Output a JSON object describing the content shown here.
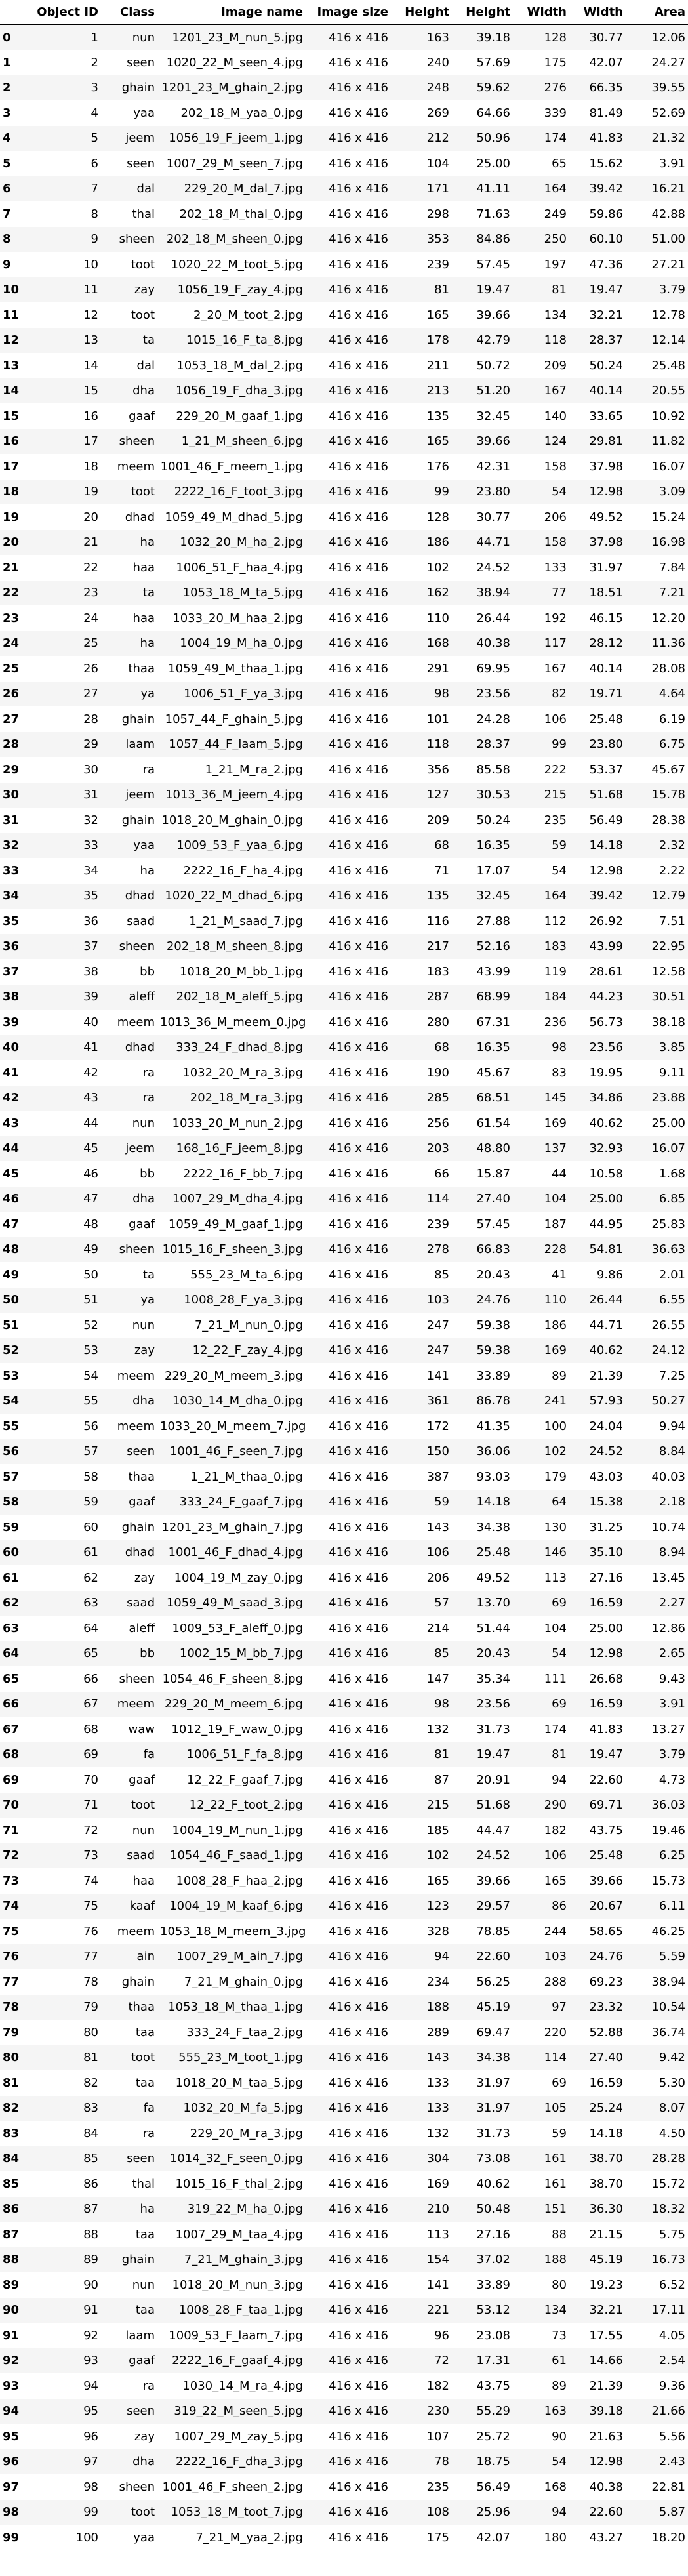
{
  "table": {
    "columns": [
      "",
      "Object ID",
      "Class",
      "Image name",
      "Image size",
      "Height",
      "Height",
      "Width",
      "Width",
      "Area"
    ],
    "rows": [
      [
        "0",
        "1",
        "nun",
        "1201_23_M_nun_5.jpg",
        "416 x 416",
        "163",
        "39.18",
        "128",
        "30.77",
        "12.06"
      ],
      [
        "1",
        "2",
        "seen",
        "1020_22_M_seen_4.jpg",
        "416 x 416",
        "240",
        "57.69",
        "175",
        "42.07",
        "24.27"
      ],
      [
        "2",
        "3",
        "ghain",
        "1201_23_M_ghain_2.jpg",
        "416 x 416",
        "248",
        "59.62",
        "276",
        "66.35",
        "39.55"
      ],
      [
        "3",
        "4",
        "yaa",
        "202_18_M_yaa_0.jpg",
        "416 x 416",
        "269",
        "64.66",
        "339",
        "81.49",
        "52.69"
      ],
      [
        "4",
        "5",
        "jeem",
        "1056_19_F_jeem_1.jpg",
        "416 x 416",
        "212",
        "50.96",
        "174",
        "41.83",
        "21.32"
      ],
      [
        "5",
        "6",
        "seen",
        "1007_29_M_seen_7.jpg",
        "416 x 416",
        "104",
        "25.00",
        "65",
        "15.62",
        "3.91"
      ],
      [
        "6",
        "7",
        "dal",
        "229_20_M_dal_7.jpg",
        "416 x 416",
        "171",
        "41.11",
        "164",
        "39.42",
        "16.21"
      ],
      [
        "7",
        "8",
        "thal",
        "202_18_M_thal_0.jpg",
        "416 x 416",
        "298",
        "71.63",
        "249",
        "59.86",
        "42.88"
      ],
      [
        "8",
        "9",
        "sheen",
        "202_18_M_sheen_0.jpg",
        "416 x 416",
        "353",
        "84.86",
        "250",
        "60.10",
        "51.00"
      ],
      [
        "9",
        "10",
        "toot",
        "1020_22_M_toot_5.jpg",
        "416 x 416",
        "239",
        "57.45",
        "197",
        "47.36",
        "27.21"
      ],
      [
        "10",
        "11",
        "zay",
        "1056_19_F_zay_4.jpg",
        "416 x 416",
        "81",
        "19.47",
        "81",
        "19.47",
        "3.79"
      ],
      [
        "11",
        "12",
        "toot",
        "2_20_M_toot_2.jpg",
        "416 x 416",
        "165",
        "39.66",
        "134",
        "32.21",
        "12.78"
      ],
      [
        "12",
        "13",
        "ta",
        "1015_16_F_ta_8.jpg",
        "416 x 416",
        "178",
        "42.79",
        "118",
        "28.37",
        "12.14"
      ],
      [
        "13",
        "14",
        "dal",
        "1053_18_M_dal_2.jpg",
        "416 x 416",
        "211",
        "50.72",
        "209",
        "50.24",
        "25.48"
      ],
      [
        "14",
        "15",
        "dha",
        "1056_19_F_dha_3.jpg",
        "416 x 416",
        "213",
        "51.20",
        "167",
        "40.14",
        "20.55"
      ],
      [
        "15",
        "16",
        "gaaf",
        "229_20_M_gaaf_1.jpg",
        "416 x 416",
        "135",
        "32.45",
        "140",
        "33.65",
        "10.92"
      ],
      [
        "16",
        "17",
        "sheen",
        "1_21_M_sheen_6.jpg",
        "416 x 416",
        "165",
        "39.66",
        "124",
        "29.81",
        "11.82"
      ],
      [
        "17",
        "18",
        "meem",
        "1001_46_F_meem_1.jpg",
        "416 x 416",
        "176",
        "42.31",
        "158",
        "37.98",
        "16.07"
      ],
      [
        "18",
        "19",
        "toot",
        "2222_16_F_toot_3.jpg",
        "416 x 416",
        "99",
        "23.80",
        "54",
        "12.98",
        "3.09"
      ],
      [
        "19",
        "20",
        "dhad",
        "1059_49_M_dhad_5.jpg",
        "416 x 416",
        "128",
        "30.77",
        "206",
        "49.52",
        "15.24"
      ],
      [
        "20",
        "21",
        "ha",
        "1032_20_M_ha_2.jpg",
        "416 x 416",
        "186",
        "44.71",
        "158",
        "37.98",
        "16.98"
      ],
      [
        "21",
        "22",
        "haa",
        "1006_51_F_haa_4.jpg",
        "416 x 416",
        "102",
        "24.52",
        "133",
        "31.97",
        "7.84"
      ],
      [
        "22",
        "23",
        "ta",
        "1053_18_M_ta_5.jpg",
        "416 x 416",
        "162",
        "38.94",
        "77",
        "18.51",
        "7.21"
      ],
      [
        "23",
        "24",
        "haa",
        "1033_20_M_haa_2.jpg",
        "416 x 416",
        "110",
        "26.44",
        "192",
        "46.15",
        "12.20"
      ],
      [
        "24",
        "25",
        "ha",
        "1004_19_M_ha_0.jpg",
        "416 x 416",
        "168",
        "40.38",
        "117",
        "28.12",
        "11.36"
      ],
      [
        "25",
        "26",
        "thaa",
        "1059_49_M_thaa_1.jpg",
        "416 x 416",
        "291",
        "69.95",
        "167",
        "40.14",
        "28.08"
      ],
      [
        "26",
        "27",
        "ya",
        "1006_51_F_ya_3.jpg",
        "416 x 416",
        "98",
        "23.56",
        "82",
        "19.71",
        "4.64"
      ],
      [
        "27",
        "28",
        "ghain",
        "1057_44_F_ghain_5.jpg",
        "416 x 416",
        "101",
        "24.28",
        "106",
        "25.48",
        "6.19"
      ],
      [
        "28",
        "29",
        "laam",
        "1057_44_F_laam_5.jpg",
        "416 x 416",
        "118",
        "28.37",
        "99",
        "23.80",
        "6.75"
      ],
      [
        "29",
        "30",
        "ra",
        "1_21_M_ra_2.jpg",
        "416 x 416",
        "356",
        "85.58",
        "222",
        "53.37",
        "45.67"
      ],
      [
        "30",
        "31",
        "jeem",
        "1013_36_M_jeem_4.jpg",
        "416 x 416",
        "127",
        "30.53",
        "215",
        "51.68",
        "15.78"
      ],
      [
        "31",
        "32",
        "ghain",
        "1018_20_M_ghain_0.jpg",
        "416 x 416",
        "209",
        "50.24",
        "235",
        "56.49",
        "28.38"
      ],
      [
        "32",
        "33",
        "yaa",
        "1009_53_F_yaa_6.jpg",
        "416 x 416",
        "68",
        "16.35",
        "59",
        "14.18",
        "2.32"
      ],
      [
        "33",
        "34",
        "ha",
        "2222_16_F_ha_4.jpg",
        "416 x 416",
        "71",
        "17.07",
        "54",
        "12.98",
        "2.22"
      ],
      [
        "34",
        "35",
        "dhad",
        "1020_22_M_dhad_6.jpg",
        "416 x 416",
        "135",
        "32.45",
        "164",
        "39.42",
        "12.79"
      ],
      [
        "35",
        "36",
        "saad",
        "1_21_M_saad_7.jpg",
        "416 x 416",
        "116",
        "27.88",
        "112",
        "26.92",
        "7.51"
      ],
      [
        "36",
        "37",
        "sheen",
        "202_18_M_sheen_8.jpg",
        "416 x 416",
        "217",
        "52.16",
        "183",
        "43.99",
        "22.95"
      ],
      [
        "37",
        "38",
        "bb",
        "1018_20_M_bb_1.jpg",
        "416 x 416",
        "183",
        "43.99",
        "119",
        "28.61",
        "12.58"
      ],
      [
        "38",
        "39",
        "aleff",
        "202_18_M_aleff_5.jpg",
        "416 x 416",
        "287",
        "68.99",
        "184",
        "44.23",
        "30.51"
      ],
      [
        "39",
        "40",
        "meem",
        "1013_36_M_meem_0.jpg",
        "416 x 416",
        "280",
        "67.31",
        "236",
        "56.73",
        "38.18"
      ],
      [
        "40",
        "41",
        "dhad",
        "333_24_F_dhad_8.jpg",
        "416 x 416",
        "68",
        "16.35",
        "98",
        "23.56",
        "3.85"
      ],
      [
        "41",
        "42",
        "ra",
        "1032_20_M_ra_3.jpg",
        "416 x 416",
        "190",
        "45.67",
        "83",
        "19.95",
        "9.11"
      ],
      [
        "42",
        "43",
        "ra",
        "202_18_M_ra_3.jpg",
        "416 x 416",
        "285",
        "68.51",
        "145",
        "34.86",
        "23.88"
      ],
      [
        "43",
        "44",
        "nun",
        "1033_20_M_nun_2.jpg",
        "416 x 416",
        "256",
        "61.54",
        "169",
        "40.62",
        "25.00"
      ],
      [
        "44",
        "45",
        "jeem",
        "168_16_F_jeem_8.jpg",
        "416 x 416",
        "203",
        "48.80",
        "137",
        "32.93",
        "16.07"
      ],
      [
        "45",
        "46",
        "bb",
        "2222_16_F_bb_7.jpg",
        "416 x 416",
        "66",
        "15.87",
        "44",
        "10.58",
        "1.68"
      ],
      [
        "46",
        "47",
        "dha",
        "1007_29_M_dha_4.jpg",
        "416 x 416",
        "114",
        "27.40",
        "104",
        "25.00",
        "6.85"
      ],
      [
        "47",
        "48",
        "gaaf",
        "1059_49_M_gaaf_1.jpg",
        "416 x 416",
        "239",
        "57.45",
        "187",
        "44.95",
        "25.83"
      ],
      [
        "48",
        "49",
        "sheen",
        "1015_16_F_sheen_3.jpg",
        "416 x 416",
        "278",
        "66.83",
        "228",
        "54.81",
        "36.63"
      ],
      [
        "49",
        "50",
        "ta",
        "555_23_M_ta_6.jpg",
        "416 x 416",
        "85",
        "20.43",
        "41",
        "9.86",
        "2.01"
      ],
      [
        "50",
        "51",
        "ya",
        "1008_28_F_ya_3.jpg",
        "416 x 416",
        "103",
        "24.76",
        "110",
        "26.44",
        "6.55"
      ],
      [
        "51",
        "52",
        "nun",
        "7_21_M_nun_0.jpg",
        "416 x 416",
        "247",
        "59.38",
        "186",
        "44.71",
        "26.55"
      ],
      [
        "52",
        "53",
        "zay",
        "12_22_F_zay_4.jpg",
        "416 x 416",
        "247",
        "59.38",
        "169",
        "40.62",
        "24.12"
      ],
      [
        "53",
        "54",
        "meem",
        "229_20_M_meem_3.jpg",
        "416 x 416",
        "141",
        "33.89",
        "89",
        "21.39",
        "7.25"
      ],
      [
        "54",
        "55",
        "dha",
        "1030_14_M_dha_0.jpg",
        "416 x 416",
        "361",
        "86.78",
        "241",
        "57.93",
        "50.27"
      ],
      [
        "55",
        "56",
        "meem",
        "1033_20_M_meem_7.jpg",
        "416 x 416",
        "172",
        "41.35",
        "100",
        "24.04",
        "9.94"
      ],
      [
        "56",
        "57",
        "seen",
        "1001_46_F_seen_7.jpg",
        "416 x 416",
        "150",
        "36.06",
        "102",
        "24.52",
        "8.84"
      ],
      [
        "57",
        "58",
        "thaa",
        "1_21_M_thaa_0.jpg",
        "416 x 416",
        "387",
        "93.03",
        "179",
        "43.03",
        "40.03"
      ],
      [
        "58",
        "59",
        "gaaf",
        "333_24_F_gaaf_7.jpg",
        "416 x 416",
        "59",
        "14.18",
        "64",
        "15.38",
        "2.18"
      ],
      [
        "59",
        "60",
        "ghain",
        "1201_23_M_ghain_7.jpg",
        "416 x 416",
        "143",
        "34.38",
        "130",
        "31.25",
        "10.74"
      ],
      [
        "60",
        "61",
        "dhad",
        "1001_46_F_dhad_4.jpg",
        "416 x 416",
        "106",
        "25.48",
        "146",
        "35.10",
        "8.94"
      ],
      [
        "61",
        "62",
        "zay",
        "1004_19_M_zay_0.jpg",
        "416 x 416",
        "206",
        "49.52",
        "113",
        "27.16",
        "13.45"
      ],
      [
        "62",
        "63",
        "saad",
        "1059_49_M_saad_3.jpg",
        "416 x 416",
        "57",
        "13.70",
        "69",
        "16.59",
        "2.27"
      ],
      [
        "63",
        "64",
        "aleff",
        "1009_53_F_aleff_0.jpg",
        "416 x 416",
        "214",
        "51.44",
        "104",
        "25.00",
        "12.86"
      ],
      [
        "64",
        "65",
        "bb",
        "1002_15_M_bb_7.jpg",
        "416 x 416",
        "85",
        "20.43",
        "54",
        "12.98",
        "2.65"
      ],
      [
        "65",
        "66",
        "sheen",
        "1054_46_F_sheen_8.jpg",
        "416 x 416",
        "147",
        "35.34",
        "111",
        "26.68",
        "9.43"
      ],
      [
        "66",
        "67",
        "meem",
        "229_20_M_meem_6.jpg",
        "416 x 416",
        "98",
        "23.56",
        "69",
        "16.59",
        "3.91"
      ],
      [
        "67",
        "68",
        "waw",
        "1012_19_F_waw_0.jpg",
        "416 x 416",
        "132",
        "31.73",
        "174",
        "41.83",
        "13.27"
      ],
      [
        "68",
        "69",
        "fa",
        "1006_51_F_fa_8.jpg",
        "416 x 416",
        "81",
        "19.47",
        "81",
        "19.47",
        "3.79"
      ],
      [
        "69",
        "70",
        "gaaf",
        "12_22_F_gaaf_7.jpg",
        "416 x 416",
        "87",
        "20.91",
        "94",
        "22.60",
        "4.73"
      ],
      [
        "70",
        "71",
        "toot",
        "12_22_F_toot_2.jpg",
        "416 x 416",
        "215",
        "51.68",
        "290",
        "69.71",
        "36.03"
      ],
      [
        "71",
        "72",
        "nun",
        "1004_19_M_nun_1.jpg",
        "416 x 416",
        "185",
        "44.47",
        "182",
        "43.75",
        "19.46"
      ],
      [
        "72",
        "73",
        "saad",
        "1054_46_F_saad_1.jpg",
        "416 x 416",
        "102",
        "24.52",
        "106",
        "25.48",
        "6.25"
      ],
      [
        "73",
        "74",
        "haa",
        "1008_28_F_haa_2.jpg",
        "416 x 416",
        "165",
        "39.66",
        "165",
        "39.66",
        "15.73"
      ],
      [
        "74",
        "75",
        "kaaf",
        "1004_19_M_kaaf_6.jpg",
        "416 x 416",
        "123",
        "29.57",
        "86",
        "20.67",
        "6.11"
      ],
      [
        "75",
        "76",
        "meem",
        "1053_18_M_meem_3.jpg",
        "416 x 416",
        "328",
        "78.85",
        "244",
        "58.65",
        "46.25"
      ],
      [
        "76",
        "77",
        "ain",
        "1007_29_M_ain_7.jpg",
        "416 x 416",
        "94",
        "22.60",
        "103",
        "24.76",
        "5.59"
      ],
      [
        "77",
        "78",
        "ghain",
        "7_21_M_ghain_0.jpg",
        "416 x 416",
        "234",
        "56.25",
        "288",
        "69.23",
        "38.94"
      ],
      [
        "78",
        "79",
        "thaa",
        "1053_18_M_thaa_1.jpg",
        "416 x 416",
        "188",
        "45.19",
        "97",
        "23.32",
        "10.54"
      ],
      [
        "79",
        "80",
        "taa",
        "333_24_F_taa_2.jpg",
        "416 x 416",
        "289",
        "69.47",
        "220",
        "52.88",
        "36.74"
      ],
      [
        "80",
        "81",
        "toot",
        "555_23_M_toot_1.jpg",
        "416 x 416",
        "143",
        "34.38",
        "114",
        "27.40",
        "9.42"
      ],
      [
        "81",
        "82",
        "taa",
        "1018_20_M_taa_5.jpg",
        "416 x 416",
        "133",
        "31.97",
        "69",
        "16.59",
        "5.30"
      ],
      [
        "82",
        "83",
        "fa",
        "1032_20_M_fa_5.jpg",
        "416 x 416",
        "133",
        "31.97",
        "105",
        "25.24",
        "8.07"
      ],
      [
        "83",
        "84",
        "ra",
        "229_20_M_ra_3.jpg",
        "416 x 416",
        "132",
        "31.73",
        "59",
        "14.18",
        "4.50"
      ],
      [
        "84",
        "85",
        "seen",
        "1014_32_F_seen_0.jpg",
        "416 x 416",
        "304",
        "73.08",
        "161",
        "38.70",
        "28.28"
      ],
      [
        "85",
        "86",
        "thal",
        "1015_16_F_thal_2.jpg",
        "416 x 416",
        "169",
        "40.62",
        "161",
        "38.70",
        "15.72"
      ],
      [
        "86",
        "87",
        "ha",
        "319_22_M_ha_0.jpg",
        "416 x 416",
        "210",
        "50.48",
        "151",
        "36.30",
        "18.32"
      ],
      [
        "87",
        "88",
        "taa",
        "1007_29_M_taa_4.jpg",
        "416 x 416",
        "113",
        "27.16",
        "88",
        "21.15",
        "5.75"
      ],
      [
        "88",
        "89",
        "ghain",
        "7_21_M_ghain_3.jpg",
        "416 x 416",
        "154",
        "37.02",
        "188",
        "45.19",
        "16.73"
      ],
      [
        "89",
        "90",
        "nun",
        "1018_20_M_nun_3.jpg",
        "416 x 416",
        "141",
        "33.89",
        "80",
        "19.23",
        "6.52"
      ],
      [
        "90",
        "91",
        "taa",
        "1008_28_F_taa_1.jpg",
        "416 x 416",
        "221",
        "53.12",
        "134",
        "32.21",
        "17.11"
      ],
      [
        "91",
        "92",
        "laam",
        "1009_53_F_laam_7.jpg",
        "416 x 416",
        "96",
        "23.08",
        "73",
        "17.55",
        "4.05"
      ],
      [
        "92",
        "93",
        "gaaf",
        "2222_16_F_gaaf_4.jpg",
        "416 x 416",
        "72",
        "17.31",
        "61",
        "14.66",
        "2.54"
      ],
      [
        "93",
        "94",
        "ra",
        "1030_14_M_ra_4.jpg",
        "416 x 416",
        "182",
        "43.75",
        "89",
        "21.39",
        "9.36"
      ],
      [
        "94",
        "95",
        "seen",
        "319_22_M_seen_5.jpg",
        "416 x 416",
        "230",
        "55.29",
        "163",
        "39.18",
        "21.66"
      ],
      [
        "95",
        "96",
        "zay",
        "1007_29_M_zay_5.jpg",
        "416 x 416",
        "107",
        "25.72",
        "90",
        "21.63",
        "5.56"
      ],
      [
        "96",
        "97",
        "dha",
        "2222_16_F_dha_3.jpg",
        "416 x 416",
        "78",
        "18.75",
        "54",
        "12.98",
        "2.43"
      ],
      [
        "97",
        "98",
        "sheen",
        "1001_46_F_sheen_2.jpg",
        "416 x 416",
        "235",
        "56.49",
        "168",
        "40.38",
        "22.81"
      ],
      [
        "98",
        "99",
        "toot",
        "1053_18_M_toot_7.jpg",
        "416 x 416",
        "108",
        "25.96",
        "94",
        "22.60",
        "5.87"
      ],
      [
        "99",
        "100",
        "yaa",
        "7_21_M_yaa_2.jpg",
        "416 x 416",
        "175",
        "42.07",
        "180",
        "43.27",
        "18.20"
      ]
    ]
  }
}
